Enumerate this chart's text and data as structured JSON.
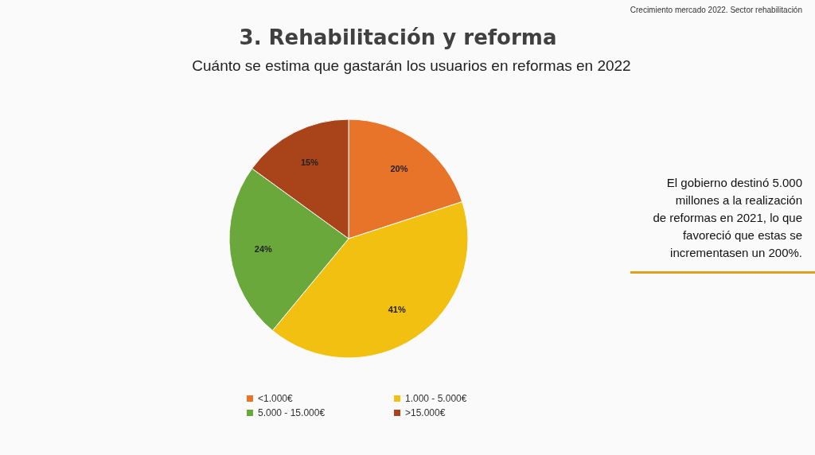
{
  "chart_data": {
    "type": "pie",
    "title": "3. Rehabilitación y reforma",
    "subtitle": "Cuánto se estima que gastarán los usuarios en reformas en 2022",
    "categories": [
      "<1.000€",
      "1.000 - 5.000€",
      "5.000 - 15.000€",
      ">15.000€"
    ],
    "values": [
      20,
      41,
      24,
      15
    ],
    "colors": [
      "#e8742a",
      "#f2c010",
      "#6aa83c",
      "#a9431a"
    ],
    "value_labels": [
      "20%",
      "41%",
      "24%",
      "15%"
    ],
    "legend": "bottom",
    "annotations": [
      "Crecimiento mercado 2022. Sector rehabilitación",
      "El gobierno destinó 5.000 millones a la realización de reformas en 2021, lo que favoreció que estas se incrementasen un 200%."
    ]
  }
}
